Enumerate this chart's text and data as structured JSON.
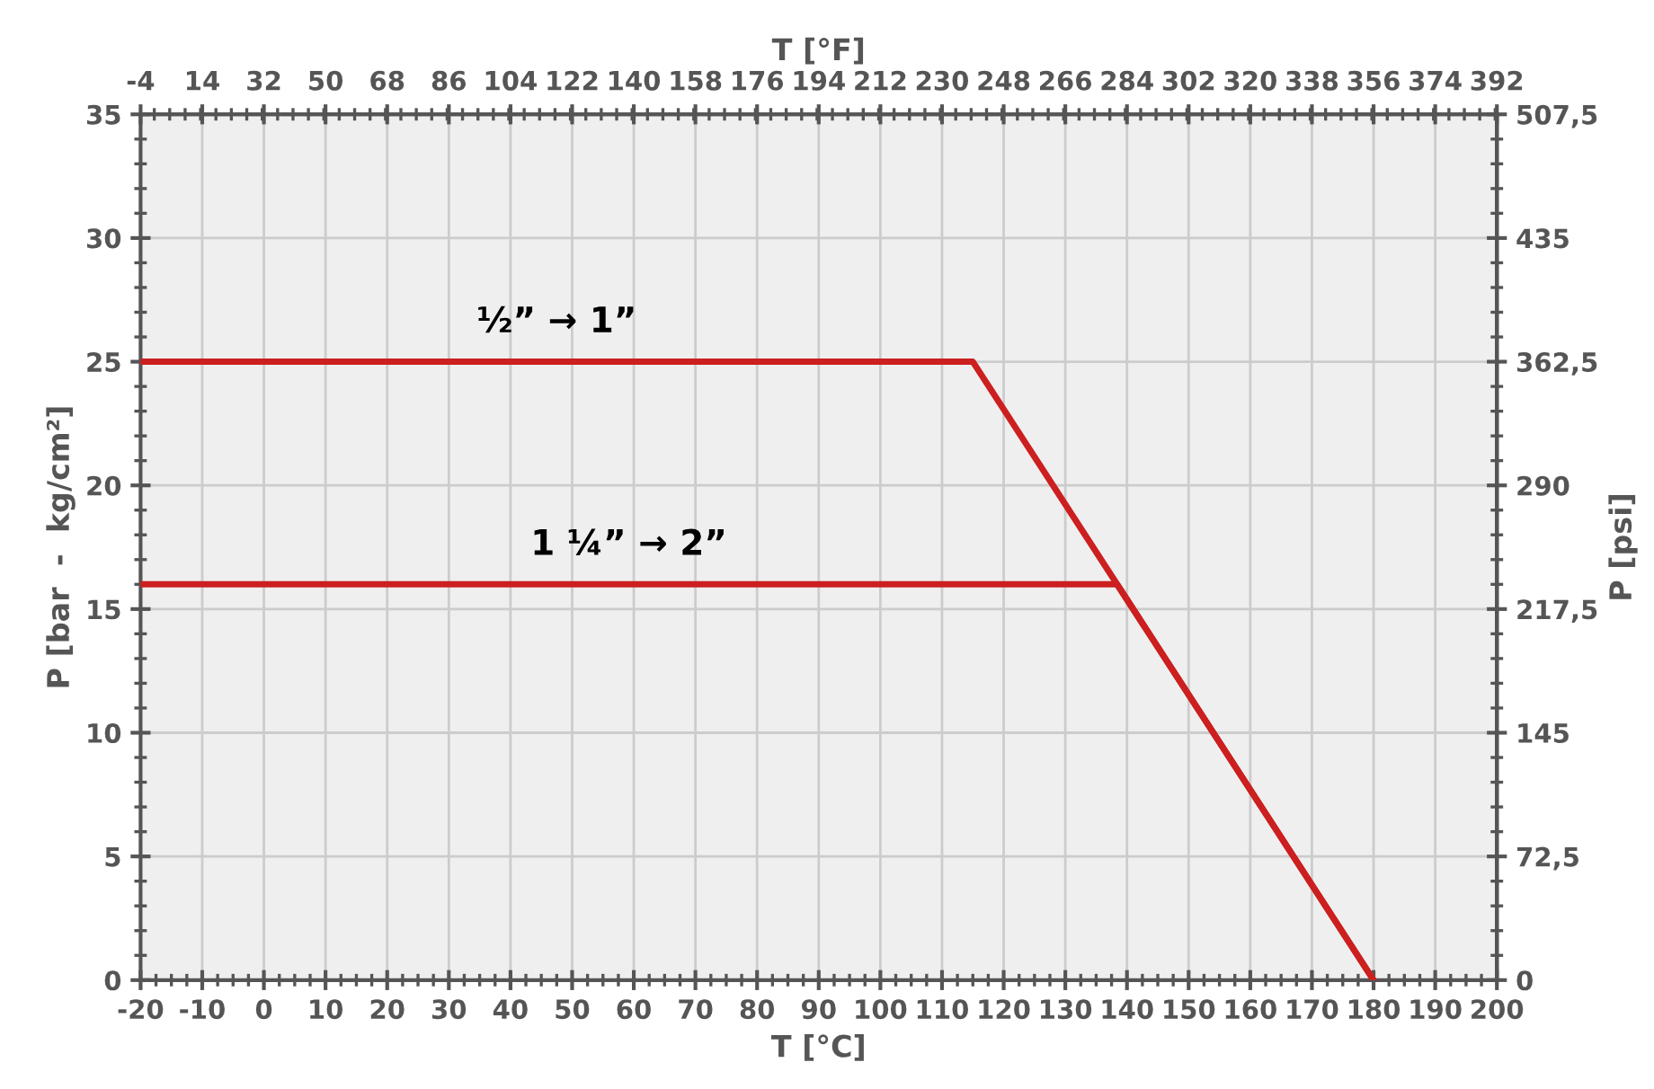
{
  "chart_data": {
    "type": "line",
    "xlabel": "T [°C]",
    "ylabel": "P [bar  -  kg/cm²]",
    "y2label": "P [psi]",
    "x2label": "T [°F]",
    "series": [
      {
        "name": "½” → 1”",
        "color": "#cc1f1f",
        "x": [
          -20,
          115,
          180
        ],
        "values": [
          25,
          25,
          0
        ]
      },
      {
        "name": "1 ¼” → 2”",
        "color": "#cc1f1f",
        "x": [
          -20,
          138.4,
          180
        ],
        "values": [
          16,
          16,
          0
        ]
      }
    ],
    "xlim": [
      -20,
      200
    ],
    "xticks": [
      -20,
      -10,
      0,
      10,
      20,
      30,
      40,
      50,
      60,
      70,
      80,
      90,
      100,
      110,
      120,
      130,
      140,
      150,
      160,
      170,
      180,
      190,
      200
    ],
    "ylim": [
      0,
      35
    ],
    "yticks": [
      0,
      5,
      10,
      15,
      20,
      25,
      30,
      35
    ],
    "x2lim": [
      -4,
      392
    ],
    "x2ticks": [
      -4,
      14,
      32,
      50,
      68,
      86,
      104,
      122,
      140,
      158,
      176,
      194,
      212,
      230,
      248,
      266,
      284,
      302,
      320,
      338,
      356,
      374,
      392
    ],
    "y2lim": [
      0,
      507.5
    ],
    "y2ticks": [
      0,
      {
        "value": 72.5,
        "label": "72,5"
      },
      145,
      {
        "value": 217.5,
        "label": "217,5"
      },
      290,
      {
        "value": 362.5,
        "label": "362,5"
      },
      435,
      {
        "value": 507.5,
        "label": "507,5"
      }
    ],
    "grid": true,
    "legend": false,
    "marker": "none",
    "line_style": "solid"
  }
}
